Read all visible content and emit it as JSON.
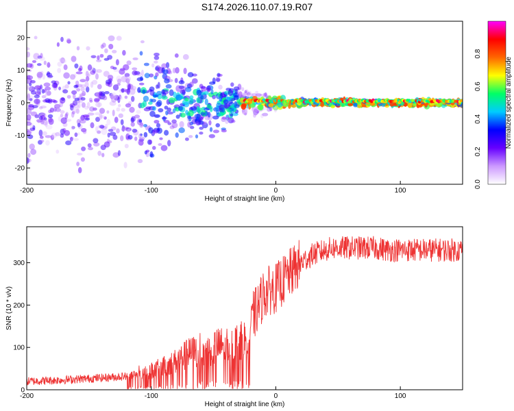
{
  "title": "S174.2026.110.07.19.R07",
  "colors": {
    "series": "#ee3333",
    "frame": "#000000",
    "background": "#ffffff"
  },
  "chart_data": [
    {
      "type": "heatmap",
      "title": "S174.2026.110.07.19.R07",
      "xlabel": "Height of straight line (km)",
      "ylabel": "Frequency (Hz)",
      "xlim": [
        -200,
        150
      ],
      "ylim": [
        -25,
        25
      ],
      "xticks": [
        -200,
        -100,
        0,
        100
      ],
      "yticks": [
        -20,
        -10,
        0,
        10,
        20
      ],
      "colorbar": {
        "label": "Normalized spectral amplitude",
        "range": [
          0,
          1
        ],
        "ticks": [
          0.0,
          0.2,
          0.4,
          0.6,
          0.8
        ],
        "colormap": [
          "#ffffff",
          "#cc99ff",
          "#6600ff",
          "#0000ff",
          "#00ccff",
          "#00ff66",
          "#ffff00",
          "#ff6600",
          "#ff0000",
          "#ff00ff"
        ]
      },
      "description_of_pattern": "Scattered low-amplitude speckle across the full band for heights below about -100 km, narrowing to a bright line near 0 Hz above about -30 km"
    },
    {
      "type": "line",
      "xlabel": "Height of straight line (km)",
      "ylabel": "SNR (10 * v/v)",
      "xlim": [
        -200,
        150
      ],
      "ylim": [
        0,
        385
      ],
      "xticks": [
        -200,
        -100,
        0,
        100
      ],
      "yticks": [
        0,
        100,
        200,
        300
      ],
      "series": [
        {
          "name": "SNR",
          "x": [
            -200,
            -180,
            -160,
            -140,
            -120,
            -110,
            -100,
            -90,
            -80,
            -70,
            -60,
            -50,
            -40,
            -30,
            -25,
            -20,
            -18,
            -15,
            -12,
            -10,
            -5,
            0,
            5,
            10,
            15,
            20,
            25,
            30,
            35,
            40,
            45,
            50,
            60,
            70,
            80,
            90,
            100,
            110,
            120,
            130,
            140,
            150
          ],
          "values": [
            20,
            22,
            25,
            28,
            32,
            40,
            45,
            55,
            68,
            85,
            95,
            100,
            105,
            110,
            115,
            140,
            175,
            190,
            210,
            225,
            235,
            240,
            255,
            270,
            285,
            300,
            310,
            320,
            325,
            330,
            335,
            335,
            335,
            335,
            335,
            330,
            330,
            330,
            330,
            330,
            330,
            330
          ]
        }
      ]
    }
  ]
}
